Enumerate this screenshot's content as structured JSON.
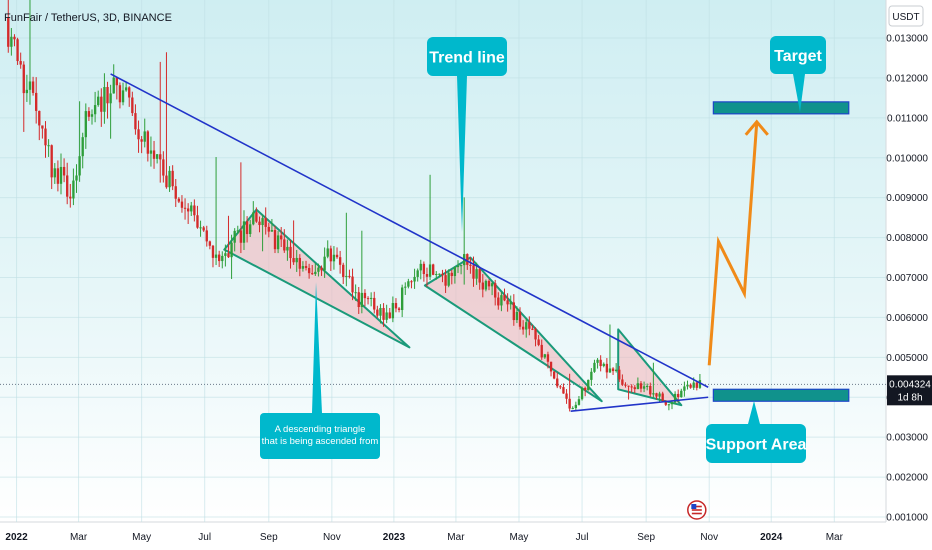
{
  "header": {
    "symbol_line": "FunFair / TetherUS, 3D, BINANCE",
    "currency_button": "USDT"
  },
  "price_badge": {
    "price": "0.004324",
    "countdown": "1d 8h"
  },
  "annotations": {
    "trend_line": "Trend line",
    "target": "Target",
    "support_area": "Support Area",
    "triangle_note": [
      "A descending triangle",
      "that is being ascended from"
    ]
  },
  "colors": {
    "background_top": "#cfeef2",
    "background_bottom": "#ffffff",
    "bull": "#2e9e3a",
    "bear": "#d42a2a",
    "trendline": "#2134c9",
    "triangle_edge": "#1a9a7a",
    "triangle_fill": "#f2b8bd",
    "callout": "#00b8cc",
    "box_fill": "#10928c",
    "box_border": "#1d46c8",
    "projection": "#f08a18"
  },
  "chart_data": {
    "type": "candlestick",
    "x_ticks": [
      "2022",
      "Mar",
      "May",
      "Jul",
      "Sep",
      "Nov",
      "2023",
      "Mar",
      "May",
      "Jul",
      "Sep",
      "Nov",
      "2024",
      "Mar"
    ],
    "y_ticks": [
      "0.013000",
      "0.012000",
      "0.011000",
      "0.010000",
      "0.009000",
      "0.008000",
      "0.007000",
      "0.006000",
      "0.005000",
      "0.004000",
      "0.003000",
      "0.002000",
      "0.001000"
    ],
    "y_range": [
      0.001,
      0.0135
    ],
    "x_range": [
      "2021-12-15",
      "2024-04-20"
    ],
    "last_price": 0.004324,
    "price_path": [
      [
        "2021-12-20",
        0.0135
      ],
      [
        "2022-01-10",
        0.0118
      ],
      [
        "2022-01-30",
        0.01
      ],
      [
        "2022-02-20",
        0.0091
      ],
      [
        "2022-03-10",
        0.011
      ],
      [
        "2022-04-05",
        0.0118
      ],
      [
        "2022-04-25",
        0.011
      ],
      [
        "2022-05-20",
        0.0096
      ],
      [
        "2022-06-15",
        0.0089
      ],
      [
        "2022-07-05",
        0.0076
      ],
      [
        "2022-07-25",
        0.0077
      ],
      [
        "2022-08-15",
        0.0085
      ],
      [
        "2022-09-15",
        0.0077
      ],
      [
        "2022-10-10",
        0.0072
      ],
      [
        "2022-11-01",
        0.0076
      ],
      [
        "2022-11-25",
        0.0065
      ],
      [
        "2022-12-25",
        0.006
      ],
      [
        "2023-01-05",
        0.0064
      ],
      [
        "2023-01-25",
        0.0073
      ],
      [
        "2023-02-20",
        0.007
      ],
      [
        "2023-03-10",
        0.0074
      ],
      [
        "2023-04-15",
        0.0064
      ],
      [
        "2023-05-15",
        0.0055
      ],
      [
        "2023-06-01",
        0.0047
      ],
      [
        "2023-06-20",
        0.0037
      ],
      [
        "2023-07-05",
        0.0043
      ],
      [
        "2023-07-15",
        0.005
      ],
      [
        "2023-08-10",
        0.0044
      ],
      [
        "2023-09-05",
        0.0041
      ],
      [
        "2023-09-25",
        0.0039
      ],
      [
        "2023-10-15",
        0.0043
      ],
      [
        "2023-10-25",
        0.0043
      ]
    ],
    "trend_line": [
      [
        "2022-04-01",
        0.0121
      ],
      [
        "2023-10-31",
        0.00425
      ]
    ],
    "support_line": [
      [
        "2023-06-20",
        0.00365
      ],
      [
        "2023-10-31",
        0.004
      ]
    ],
    "triangles": [
      [
        [
          "2022-07-20",
          0.0077
        ],
        [
          "2022-08-20",
          0.0087
        ],
        [
          "2023-01-15",
          0.00525
        ]
      ],
      [
        [
          "2023-01-30",
          0.0068
        ],
        [
          "2023-03-15",
          0.0075
        ],
        [
          "2023-07-20",
          0.0039
        ]
      ],
      [
        [
          "2023-08-05",
          0.0042
        ],
        [
          "2023-08-05",
          0.0057
        ],
        [
          "2023-10-05",
          0.0038
        ]
      ]
    ],
    "support_zone": [
      0.0039,
      0.0042
    ],
    "target_zone": [
      0.0111,
      0.0114
    ],
    "projection_path": [
      [
        "2023-11-01",
        0.0048
      ],
      [
        "2023-11-10",
        0.0079
      ],
      [
        "2023-12-05",
        0.0066
      ],
      [
        "2023-12-17",
        0.0109
      ]
    ]
  }
}
